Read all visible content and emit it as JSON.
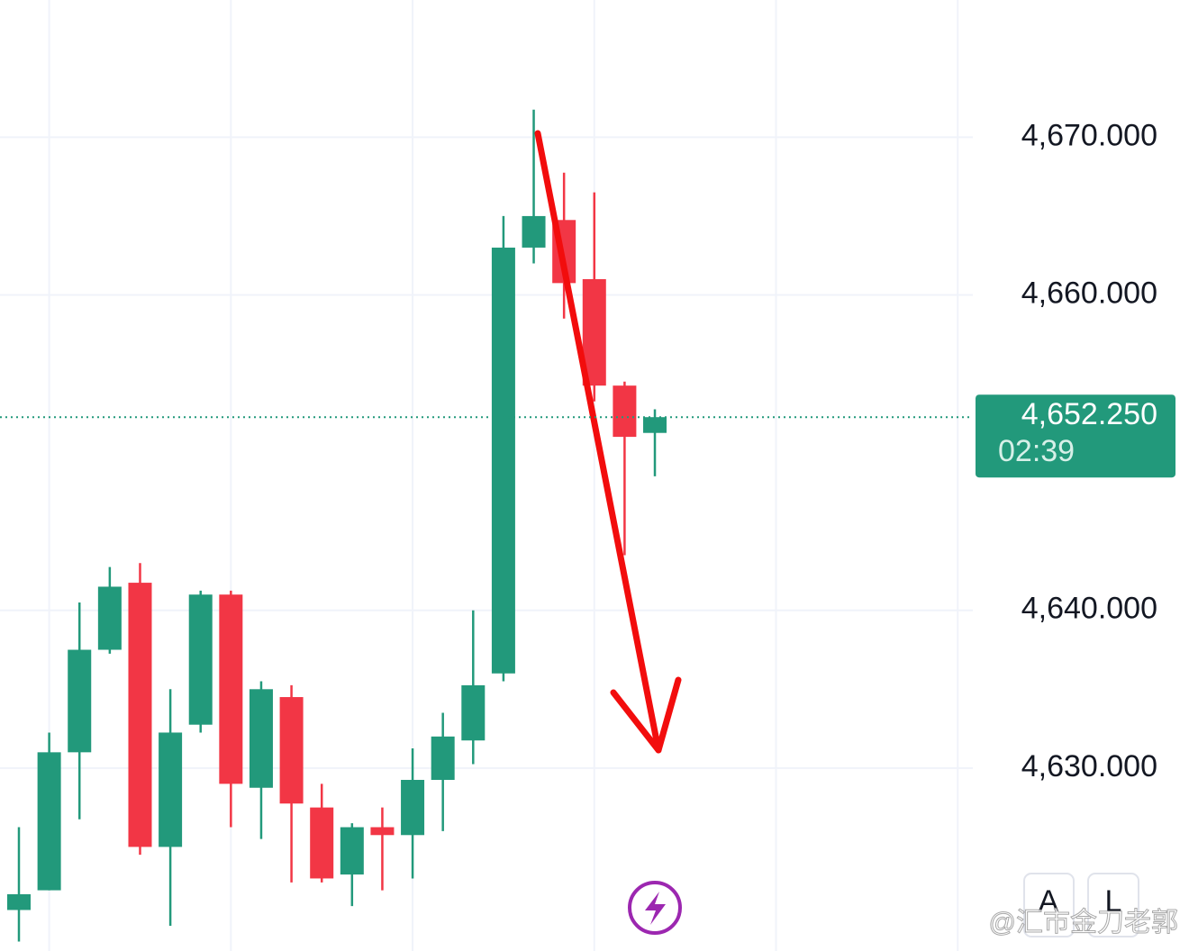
{
  "chart_data": {
    "type": "candlestick",
    "categories": [
      null,
      null,
      null,
      null,
      null,
      null,
      null,
      null,
      null,
      null,
      null,
      null,
      null,
      null,
      null,
      null,
      null,
      null,
      null,
      null,
      null,
      null
    ],
    "open": [
      4621,
      4622.25,
      4631,
      4637.5,
      4641.75,
      4625,
      4632.75,
      4641,
      4628.75,
      4634.5,
      4627.5,
      4623.25,
      4626.25,
      4625.75,
      4629.25,
      4631.75,
      4636,
      4663,
      4664.75,
      4661,
      4654.25,
      4651.25
    ],
    "high": [
      4626.25,
      4632.25,
      4640.5,
      4642.75,
      4643,
      4635,
      4641.25,
      4641.25,
      4635.5,
      4635.25,
      4629,
      4626.5,
      4627.5,
      4631.25,
      4633.5,
      4640,
      4665,
      4671.75,
      4667.75,
      4666.5,
      4654.5,
      4652.75
    ],
    "low": [
      4619,
      4622.25,
      4626.75,
      4637.25,
      4624.5,
      4620,
      4632.25,
      4626.25,
      4625.5,
      4622.75,
      4622.75,
      4621.25,
      4622.25,
      4623,
      4626,
      4630.25,
      4635.5,
      4662,
      4658.5,
      4653.25,
      4643.5,
      4648.5
    ],
    "close": [
      4622,
      4631,
      4637.5,
      4641.5,
      4625,
      4632.25,
      4641,
      4629,
      4635,
      4627.75,
      4623,
      4626.25,
      4625.75,
      4629.25,
      4632,
      4635.25,
      4663,
      4665,
      4660.75,
      4654.25,
      4651,
      4652.25
    ],
    "up_color": "#22997b",
    "down_color": "#f23645",
    "ylim": [
      4618.4,
      4678.7
    ],
    "yticks": [
      {
        "value": 4630,
        "label": "4,630.000"
      },
      {
        "value": 4640,
        "label": "4,640.000"
      },
      {
        "value": 4660,
        "label": "4,660.000"
      },
      {
        "value": 4670,
        "label": "4,670.000"
      }
    ],
    "grid": true,
    "last_price": {
      "value": 4652.25,
      "label": "4,652.250"
    },
    "countdown": "02:39"
  },
  "ui": {
    "buttons": [
      "A",
      "L"
    ],
    "watermark": "@汇市金刀老郭"
  }
}
